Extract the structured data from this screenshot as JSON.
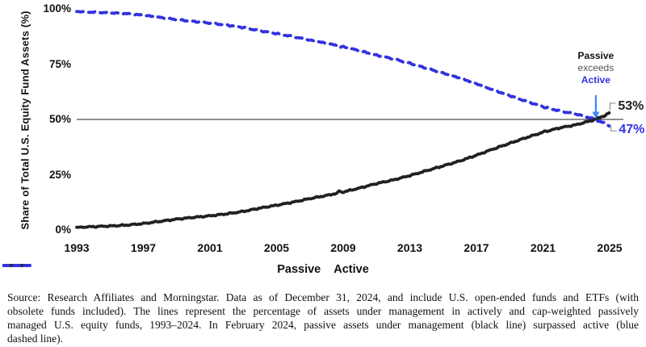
{
  "chart_data": {
    "type": "line",
    "title": "",
    "xlabel": "",
    "ylabel": "Share of Total U.S. Equity Fund Assets (%)",
    "xlim": [
      1993,
      2025
    ],
    "ylim": [
      0,
      100
    ],
    "grid": "off",
    "legend_position": "bottom-center",
    "x_ticks": [
      "1993",
      "1997",
      "2001",
      "2005",
      "2009",
      "2013",
      "2017",
      "2021",
      "2025"
    ],
    "x_tick_values": [
      1993,
      1997,
      2001,
      2005,
      2009,
      2013,
      2017,
      2021,
      2025
    ],
    "y_ticks": [
      "100%",
      "75%",
      "50%",
      "25%",
      "0%"
    ],
    "y_tick_values": [
      100,
      75,
      50,
      25,
      0
    ],
    "reference_line": {
      "value": 50
    },
    "series": [
      {
        "name": "Passive",
        "style": "solid",
        "points": [
          [
            1993,
            1.2
          ],
          [
            1994,
            1.5
          ],
          [
            1995,
            1.8
          ],
          [
            1996,
            2.2
          ],
          [
            1997,
            2.9
          ],
          [
            1998,
            3.9
          ],
          [
            1999,
            4.9
          ],
          [
            2000,
            5.7
          ],
          [
            2001,
            6.4
          ],
          [
            2002,
            7.3
          ],
          [
            2003,
            8.4
          ],
          [
            2004,
            9.9
          ],
          [
            2005,
            11.2
          ],
          [
            2006,
            12.6
          ],
          [
            2007,
            14.2
          ],
          [
            2008,
            15.6
          ],
          [
            2009,
            17.2
          ],
          [
            2010,
            19.0
          ],
          [
            2011,
            21.0
          ],
          [
            2012,
            22.6
          ],
          [
            2013,
            24.6
          ],
          [
            2014,
            26.8
          ],
          [
            2015,
            29.0
          ],
          [
            2016,
            31.2
          ],
          [
            2017,
            33.8
          ],
          [
            2018,
            36.6
          ],
          [
            2019,
            39.2
          ],
          [
            2020,
            41.8
          ],
          [
            2021,
            44.2
          ],
          [
            2022,
            46.2
          ],
          [
            2023,
            47.6
          ],
          [
            2024,
            49.7
          ],
          [
            2024.17,
            50.2
          ],
          [
            2024.5,
            51.2
          ],
          [
            2024.75,
            51.8
          ],
          [
            2024.97,
            53.0
          ]
        ]
      },
      {
        "name": "Active",
        "style": "dashed",
        "points": [
          [
            1993,
            98.8
          ],
          [
            1994,
            98.5
          ],
          [
            1995,
            98.2
          ],
          [
            1996,
            97.8
          ],
          [
            1997,
            97.1
          ],
          [
            1998,
            96.1
          ],
          [
            1999,
            95.1
          ],
          [
            2000,
            94.3
          ],
          [
            2001,
            93.6
          ],
          [
            2002,
            92.7
          ],
          [
            2003,
            91.6
          ],
          [
            2004,
            90.1
          ],
          [
            2005,
            88.8
          ],
          [
            2006,
            87.4
          ],
          [
            2007,
            85.8
          ],
          [
            2008,
            84.4
          ],
          [
            2009,
            82.8
          ],
          [
            2010,
            81.0
          ],
          [
            2011,
            79.0
          ],
          [
            2012,
            77.4
          ],
          [
            2013,
            75.4
          ],
          [
            2014,
            73.2
          ],
          [
            2015,
            71.0
          ],
          [
            2016,
            68.8
          ],
          [
            2017,
            66.2
          ],
          [
            2018,
            63.4
          ],
          [
            2019,
            60.8
          ],
          [
            2020,
            58.2
          ],
          [
            2021,
            55.8
          ],
          [
            2022,
            53.8
          ],
          [
            2023,
            52.4
          ],
          [
            2024,
            50.3
          ],
          [
            2024.17,
            49.8
          ],
          [
            2024.5,
            48.8
          ],
          [
            2024.75,
            48.2
          ],
          [
            2024.97,
            47.0
          ]
        ]
      }
    ],
    "crossover": {
      "x": 2024.17,
      "value": 50
    },
    "end_labels": {
      "passive": "53%",
      "active": "47%"
    }
  },
  "annotation": {
    "line1": "Passive",
    "line2": "exceeds",
    "line3": "Active"
  },
  "legend": {
    "passive_label": "Passive",
    "active_label": "Active"
  },
  "colors": {
    "passive": "#212121",
    "active": "#3232e0",
    "arrow": "#3c87f2",
    "refline": "#4d4d4d",
    "connector": "#9e9e9e",
    "exceeds_text": "#555555",
    "text": "#111111",
    "background": "#ffffff"
  },
  "caption": {
    "lines": [
      "Source: Research Affiliates and Morningstar. Data as of December 31, 2024, and include U.S. open-ended funds and ETFs (with",
      "obsolete funds included). The lines represent the percentage of assets under management in actively and cap-weighted passively",
      "managed U.S. equity funds, 1993–2024. In February 2024, passive assets under management (black line) surpassed active (blue",
      "dashed line)."
    ]
  }
}
